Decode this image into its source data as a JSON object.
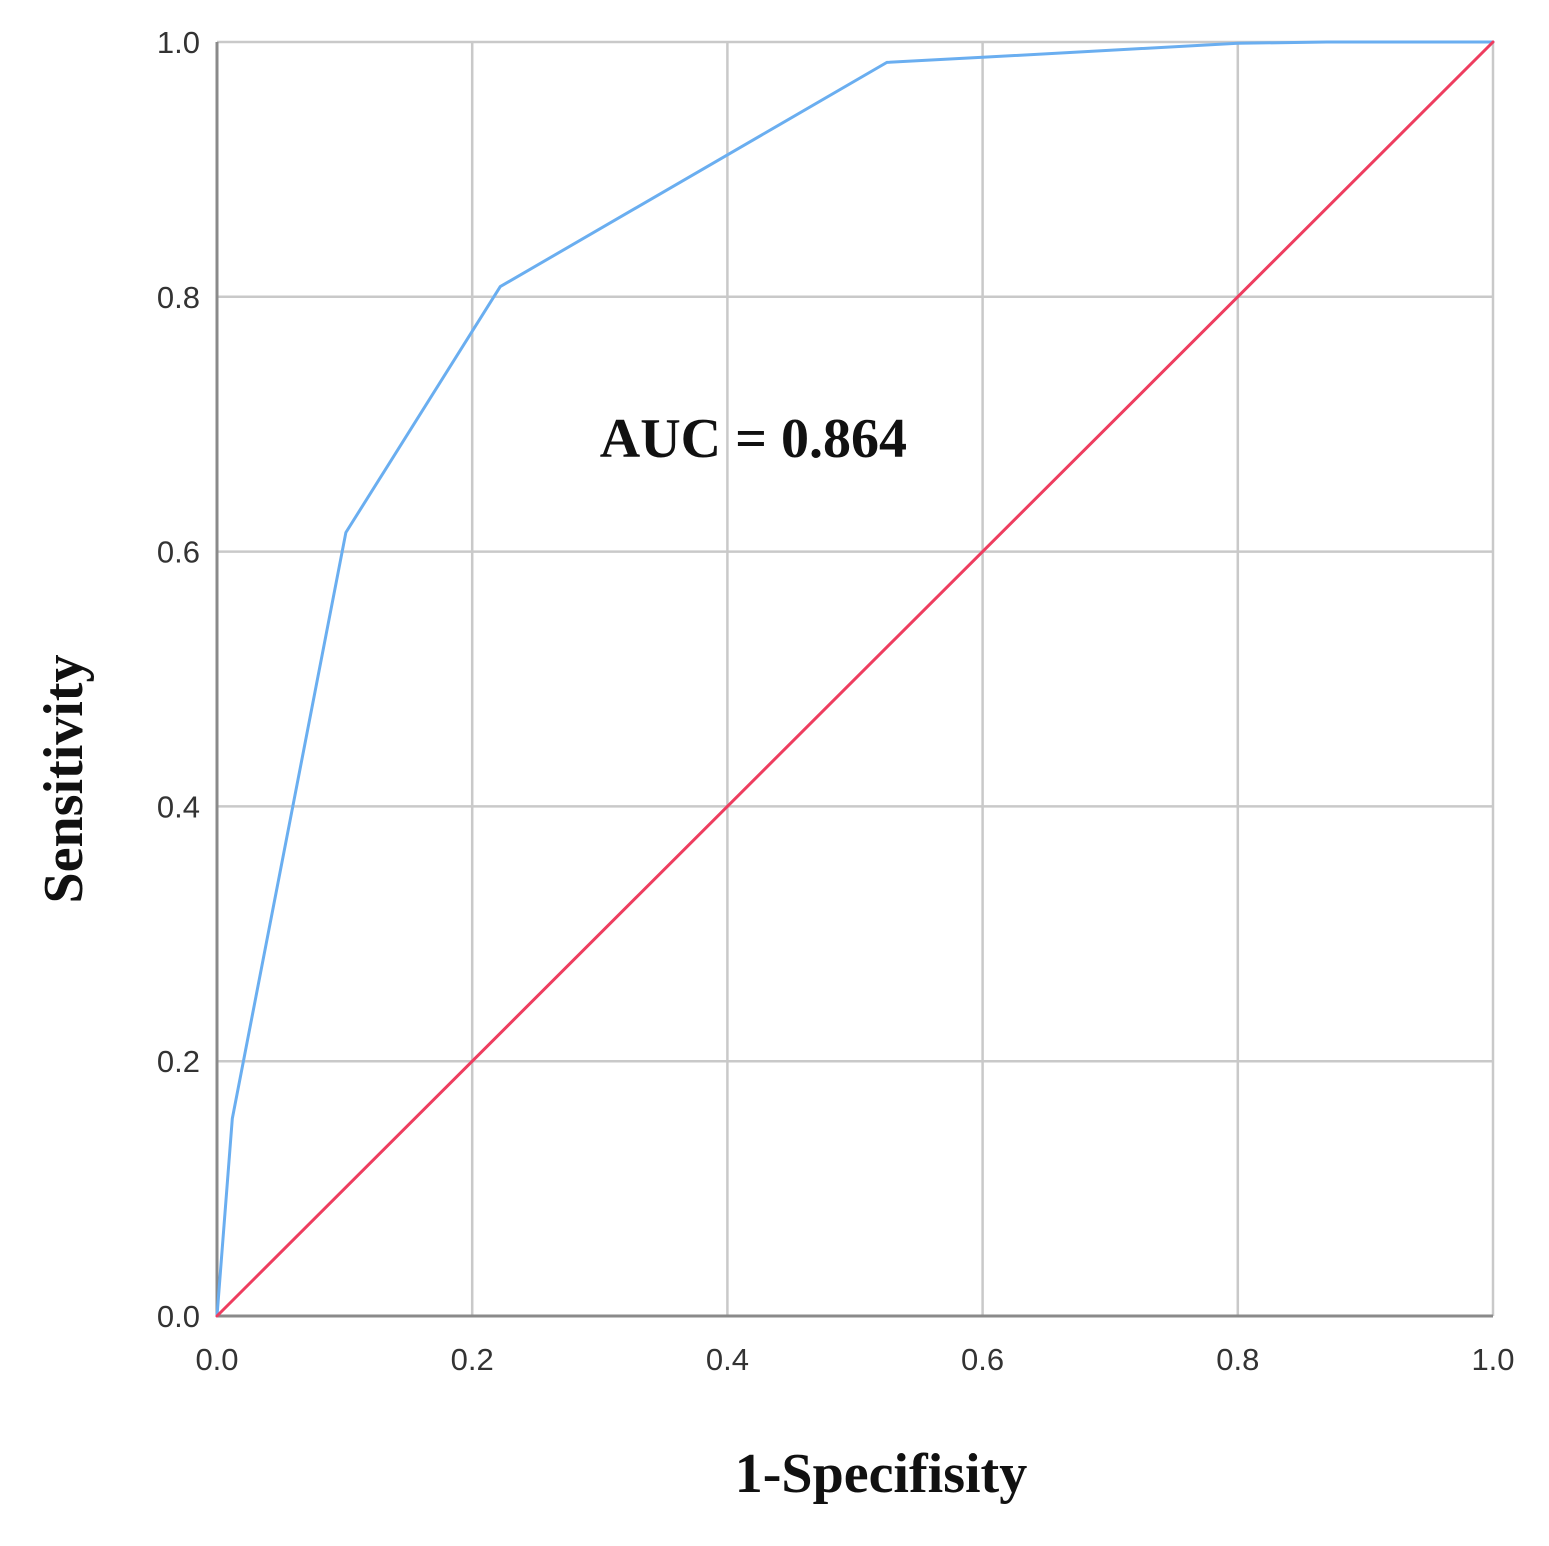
{
  "chart_data": {
    "type": "line",
    "title": "",
    "xlabel": "1-Specifisity",
    "ylabel": "Sensitivity",
    "xlim": [
      0.0,
      1.0
    ],
    "ylim": [
      0.0,
      1.0
    ],
    "x_ticks": [
      "0.0",
      "0.2",
      "0.4",
      "0.6",
      "0.8",
      "1.0"
    ],
    "y_ticks": [
      "0.0",
      "0.2",
      "0.4",
      "0.6",
      "0.8",
      "1.0"
    ],
    "grid": true,
    "annotations": [
      {
        "text": "AUC = 0.864",
        "x": 0.3,
        "y": 0.69
      }
    ],
    "series": [
      {
        "color": "#6aaef0",
        "x": [
          0.0,
          0.012,
          0.101,
          0.222,
          0.525,
          0.6,
          0.8,
          0.87,
          1.0
        ],
        "y": [
          0.0,
          0.155,
          0.615,
          0.808,
          0.984,
          0.988,
          0.999,
          1.0,
          1.0
        ]
      },
      {
        "color": "#ee3d5f",
        "x": [
          0.0,
          1.0
        ],
        "y": [
          0.0,
          1.0
        ]
      }
    ]
  }
}
